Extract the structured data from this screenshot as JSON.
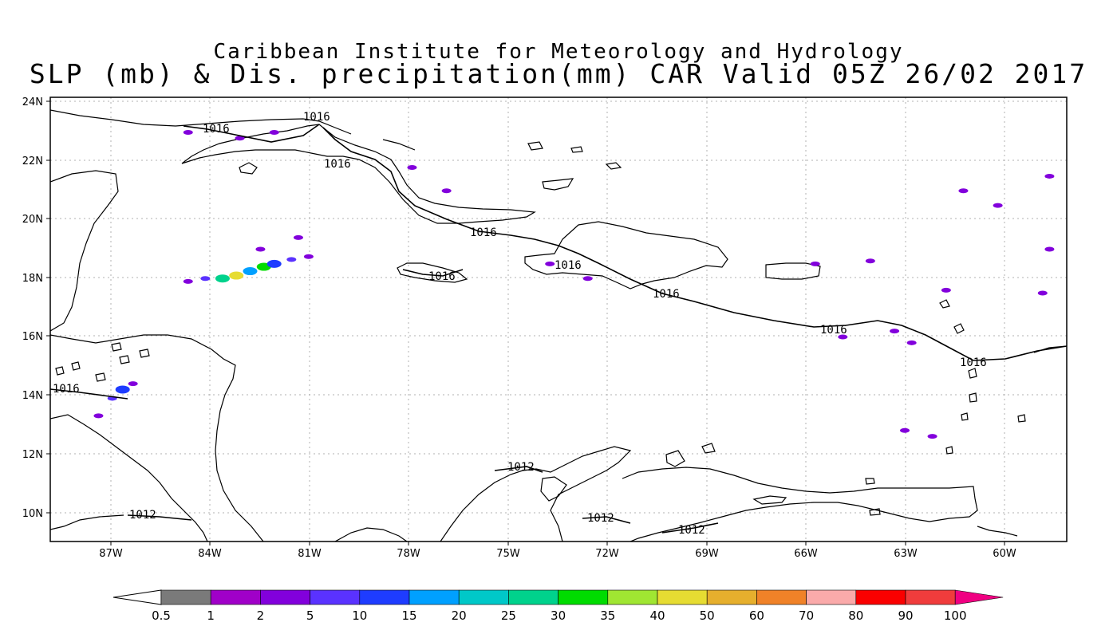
{
  "title_line1": "Caribbean Institute for Meteorology and Hydrology",
  "title_line2": "SLP (mb) & Dis. precipitation(mm) CAR Valid 05Z 26/02 2017",
  "x_ticks": [
    "87W",
    "84W",
    "81W",
    "78W",
    "75W",
    "72W",
    "69W",
    "66W",
    "63W",
    "60W"
  ],
  "y_ticks": [
    "24N",
    "22N",
    "20N",
    "18N",
    "16N",
    "14N",
    "12N",
    "10N"
  ],
  "contour_labels": [
    "1016",
    "1016",
    "1016",
    "1016",
    "1016",
    "1016",
    "1016",
    "1016",
    "1016",
    "1016",
    "1012",
    "1012",
    "1012",
    "1012"
  ],
  "colorbar": {
    "labels": [
      "0.5",
      "1",
      "2",
      "5",
      "10",
      "15",
      "20",
      "25",
      "30",
      "35",
      "40",
      "50",
      "60",
      "70",
      "80",
      "90",
      "100"
    ],
    "colors": [
      "#7a7a7a",
      "#a000c8",
      "#8200dc",
      "#5a32ff",
      "#1e3cff",
      "#00a0ff",
      "#00c8c8",
      "#00d28c",
      "#00dc00",
      "#a0e632",
      "#e6dc32",
      "#e6af2d",
      "#f08228",
      "#faaaaa",
      "#fa0000",
      "#f03c3c",
      "#f00082"
    ]
  },
  "chart_data": {
    "type": "map",
    "lon_range": [
      -88,
      -58.5
    ],
    "lat_range": [
      9,
      24.2
    ],
    "grid": true,
    "precip_cells": [
      {
        "lon": -83.5,
        "lat": 18.0,
        "v": 5
      },
      {
        "lon": -83.0,
        "lat": 18.0,
        "v": 25
      },
      {
        "lon": -82.6,
        "lat": 18.1,
        "v": 40
      },
      {
        "lon": -82.2,
        "lat": 18.25,
        "v": 15
      },
      {
        "lon": -81.8,
        "lat": 18.4,
        "v": 30
      },
      {
        "lon": -81.5,
        "lat": 18.5,
        "v": 10
      },
      {
        "lon": -81.0,
        "lat": 18.65,
        "v": 5
      },
      {
        "lon": -80.5,
        "lat": 18.75,
        "v": 2
      },
      {
        "lon": -84.0,
        "lat": 17.9,
        "v": 2
      },
      {
        "lon": -81.9,
        "lat": 19.0,
        "v": 2
      },
      {
        "lon": -80.8,
        "lat": 19.4,
        "v": 2
      },
      {
        "lon": -85.9,
        "lat": 14.2,
        "v": 10
      },
      {
        "lon": -86.2,
        "lat": 13.9,
        "v": 5
      },
      {
        "lon": -85.6,
        "lat": 14.4,
        "v": 2
      },
      {
        "lon": -86.6,
        "lat": 13.3,
        "v": 2
      },
      {
        "lon": -84.0,
        "lat": 23.0,
        "v": 2
      },
      {
        "lon": -82.5,
        "lat": 22.8,
        "v": 2
      },
      {
        "lon": -81.5,
        "lat": 23.0,
        "v": 2
      },
      {
        "lon": -63.5,
        "lat": 16.2,
        "v": 2
      },
      {
        "lon": -63.0,
        "lat": 15.8,
        "v": 2
      },
      {
        "lon": -64.2,
        "lat": 18.6,
        "v": 2
      },
      {
        "lon": -65.8,
        "lat": 18.5,
        "v": 2
      },
      {
        "lon": -62.0,
        "lat": 17.6,
        "v": 2
      },
      {
        "lon": -59.0,
        "lat": 19.0,
        "v": 2
      },
      {
        "lon": -59.2,
        "lat": 17.5,
        "v": 2
      },
      {
        "lon": -65.0,
        "lat": 16.0,
        "v": 2
      },
      {
        "lon": -63.2,
        "lat": 12.8,
        "v": 2
      },
      {
        "lon": -62.4,
        "lat": 12.6,
        "v": 2
      },
      {
        "lon": -61.5,
        "lat": 21.0,
        "v": 2
      },
      {
        "lon": -60.5,
        "lat": 20.5,
        "v": 2
      },
      {
        "lon": -59.0,
        "lat": 21.5,
        "v": 2
      },
      {
        "lon": -72.4,
        "lat": 18.0,
        "v": 2
      },
      {
        "lon": -73.5,
        "lat": 18.5,
        "v": 2
      },
      {
        "lon": -76.5,
        "lat": 21.0,
        "v": 2
      },
      {
        "lon": -77.5,
        "lat": 21.8,
        "v": 2
      }
    ]
  }
}
